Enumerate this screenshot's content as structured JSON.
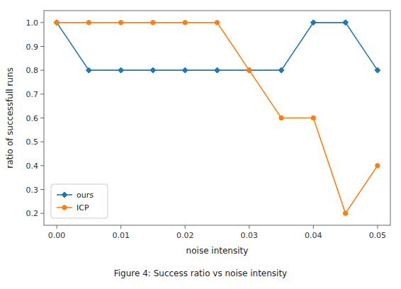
{
  "chart_data": {
    "type": "line",
    "xlabel": "noise intensity",
    "ylabel": "ratio of successfull runs",
    "caption": "Figure 4: Success ratio vs noise intensity",
    "x": [
      0.0,
      0.005,
      0.01,
      0.015,
      0.02,
      0.025,
      0.03,
      0.035,
      0.04,
      0.045,
      0.05
    ],
    "series": [
      {
        "name": "ours",
        "color": "#1f77b4",
        "marker": "diamond",
        "values": [
          1.0,
          0.8,
          0.8,
          0.8,
          0.8,
          0.8,
          0.8,
          0.8,
          1.0,
          1.0,
          0.8
        ]
      },
      {
        "name": "ICP",
        "color": "#ff7f0e",
        "marker": "circle",
        "values": [
          1.0,
          1.0,
          1.0,
          1.0,
          1.0,
          1.0,
          0.8,
          0.6,
          0.6,
          0.2,
          0.4
        ]
      }
    ],
    "xlim": [
      -0.002,
      0.052
    ],
    "ylim": [
      0.15,
      1.05
    ],
    "xticks": [
      {
        "value": 0.0,
        "label": "0.00"
      },
      {
        "value": 0.01,
        "label": "0.01"
      },
      {
        "value": 0.02,
        "label": "0.02"
      },
      {
        "value": 0.03,
        "label": "0.03"
      },
      {
        "value": 0.04,
        "label": "0.04"
      },
      {
        "value": 0.05,
        "label": "0.05"
      }
    ],
    "yticks": [
      0.2,
      0.3,
      0.4,
      0.5,
      0.6,
      0.7,
      0.8,
      0.9,
      {
        "value": 1.0,
        "label": "1.0"
      }
    ],
    "legend": "lower left",
    "grid": false
  }
}
